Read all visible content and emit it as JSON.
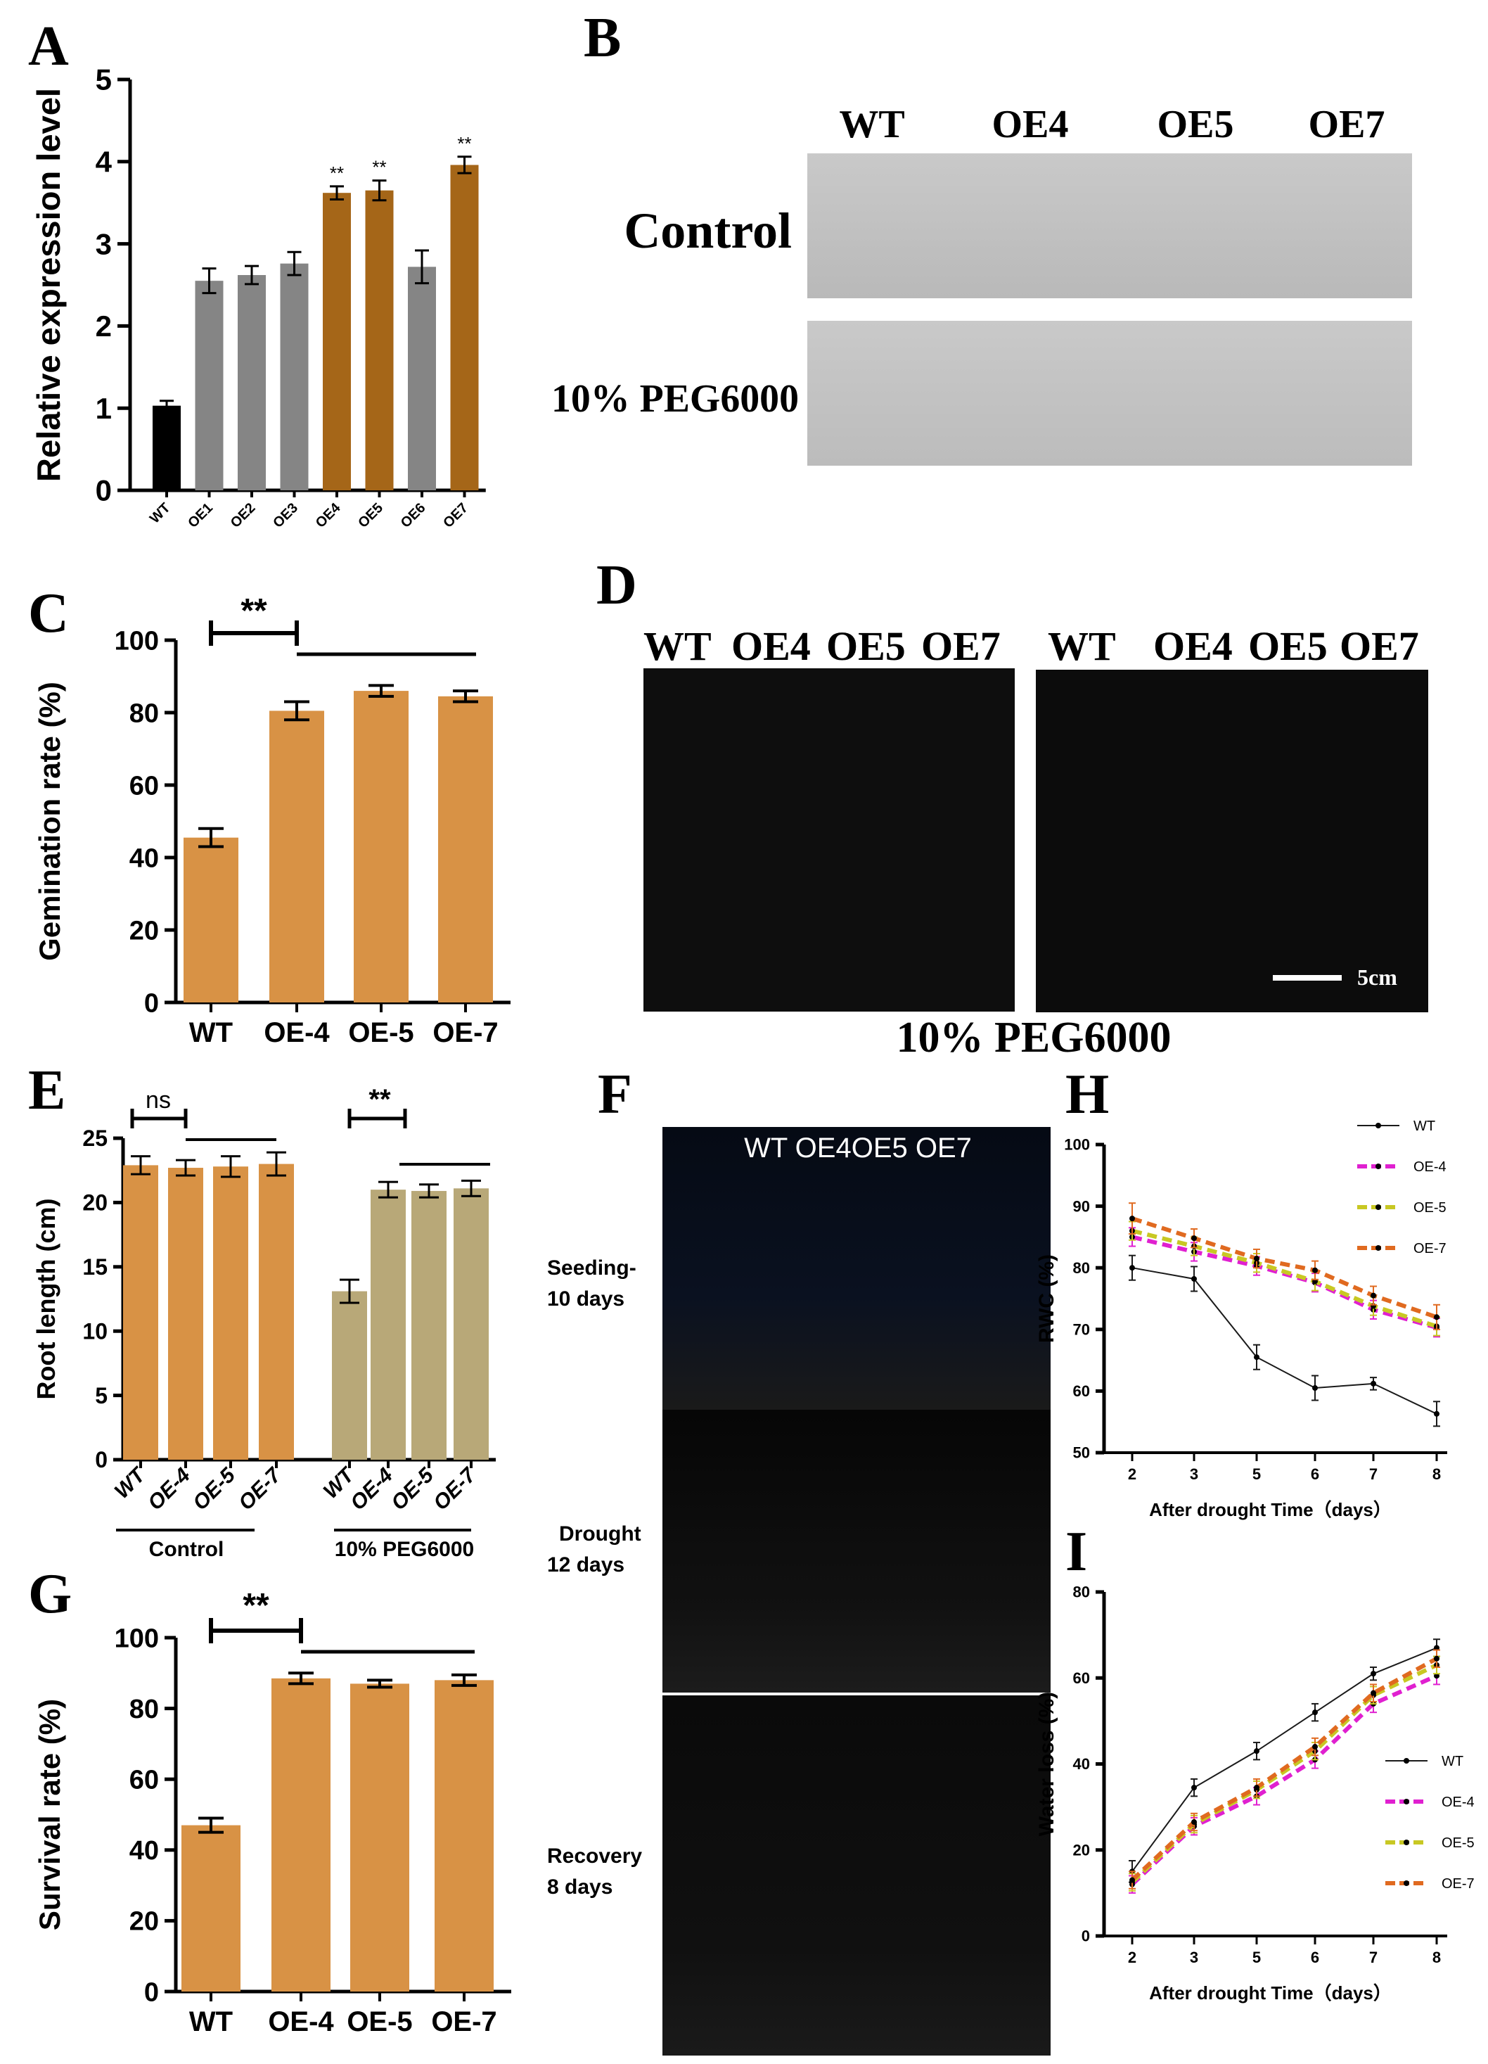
{
  "panels": {
    "A": "A",
    "B": "B",
    "C": "C",
    "D": "D",
    "E": "E",
    "F": "F",
    "G": "G",
    "H": "H",
    "I": "I"
  },
  "colors": {
    "black": "#000000",
    "gray": "#858585",
    "brown": "#a56618",
    "orange": "#d89245",
    "olive": "#b8a878",
    "wt": "#1a1a1a",
    "oe4": "#e020d0",
    "oe5": "#c8c823",
    "oe7": "#e06a20"
  },
  "photoB": {
    "cols": [
      "WT",
      "OE4",
      "OE5",
      "OE7"
    ],
    "rows": [
      "Control",
      "10% PEG6000"
    ]
  },
  "photoD": {
    "left_labels": [
      "WT",
      "OE4",
      "OE5",
      "OE7"
    ],
    "right_labels": [
      "WT",
      "OE4",
      "OE5",
      "OE7"
    ],
    "scale": "5cm",
    "caption": "10% PEG6000"
  },
  "photoF": {
    "header": "WT OE4OE5 OE7",
    "stages": [
      "Seeding-\n10 days",
      "Drought\n12 days",
      "Recovery\n8 days"
    ]
  },
  "chart_data": [
    {
      "id": "A",
      "type": "bar",
      "title": "",
      "categories": [
        "WT",
        "OE1",
        "OE2",
        "OE3",
        "OE4",
        "OE5",
        "OE6",
        "OE7"
      ],
      "values": [
        1.03,
        2.55,
        2.62,
        2.76,
        3.62,
        3.65,
        2.72,
        3.96
      ],
      "errors": [
        0.06,
        0.15,
        0.11,
        0.14,
        0.08,
        0.12,
        0.2,
        0.1
      ],
      "colors": [
        "black",
        "gray",
        "gray",
        "gray",
        "brown",
        "brown",
        "gray",
        "brown"
      ],
      "significance": [
        "",
        "",
        "",
        "",
        "**",
        "**",
        "",
        "**"
      ],
      "ylabel": "Relative expression level",
      "ylim": [
        0,
        5
      ],
      "yticks": [
        "0",
        "1",
        "2",
        "3",
        "4",
        "5"
      ]
    },
    {
      "id": "C",
      "type": "bar",
      "categories": [
        "WT",
        "OE-4",
        "OE-5",
        "OE-7"
      ],
      "values": [
        45.5,
        80.5,
        86,
        84.5
      ],
      "errors": [
        2.5,
        2.5,
        1.5,
        1.5
      ],
      "ylabel": "Gemination rate (%)",
      "ylim": [
        0,
        100
      ],
      "yticks": [
        "0",
        "20",
        "40",
        "60",
        "80",
        "100"
      ],
      "significance": "**"
    },
    {
      "id": "E",
      "type": "bar",
      "groups": [
        "Control",
        "10% PEG6000"
      ],
      "categories": [
        "WT",
        "OE-4",
        "OE-5",
        "OE-7"
      ],
      "series": [
        {
          "name": "Control",
          "values": [
            22.9,
            22.7,
            22.8,
            23.0
          ],
          "errors": [
            0.7,
            0.6,
            0.8,
            0.9
          ]
        },
        {
          "name": "10% PEG6000",
          "values": [
            13.1,
            21.0,
            20.9,
            21.1
          ],
          "errors": [
            0.9,
            0.6,
            0.5,
            0.6
          ]
        }
      ],
      "ylabel": "Root length (cm)",
      "ylim": [
        0,
        25
      ],
      "yticks": [
        "0",
        "5",
        "10",
        "15",
        "20",
        "25"
      ],
      "significance": [
        "ns",
        "**"
      ]
    },
    {
      "id": "G",
      "type": "bar",
      "categories": [
        "WT",
        "OE-4",
        "OE-5",
        "OE-7"
      ],
      "values": [
        47,
        88.5,
        87,
        88
      ],
      "errors": [
        2,
        1.5,
        1,
        1.5
      ],
      "ylabel": "Survival rate (%)",
      "ylim": [
        0,
        100
      ],
      "yticks": [
        "0",
        "20",
        "40",
        "60",
        "80",
        "100"
      ],
      "significance": "**"
    },
    {
      "id": "H",
      "type": "line",
      "x": [
        "2",
        "3",
        "5",
        "6",
        "7",
        "8"
      ],
      "series": [
        {
          "name": "WT",
          "values": [
            80,
            78.2,
            65.5,
            60.5,
            61.2,
            56.3
          ],
          "errors": [
            2,
            2,
            2,
            2,
            1,
            2
          ]
        },
        {
          "name": "OE-4",
          "values": [
            85,
            82.6,
            80.3,
            77.6,
            73.2,
            70.3
          ],
          "errors": [
            1.5,
            1.5,
            1.5,
            1.5,
            1.5,
            1.5
          ]
        },
        {
          "name": "OE-5",
          "values": [
            86,
            83.5,
            80.8,
            77.8,
            73.8,
            70.5
          ],
          "errors": [
            1.5,
            1.5,
            1.5,
            1.5,
            1.5,
            1.5
          ]
        },
        {
          "name": "OE-7",
          "values": [
            88,
            84.8,
            81.5,
            79.6,
            75.5,
            72
          ],
          "errors": [
            2.5,
            1.5,
            1.5,
            1.5,
            1.5,
            2
          ]
        }
      ],
      "xlabel": "After drought Time（days）",
      "ylabel": "RWC (%)",
      "ylim": [
        50,
        100
      ],
      "yticks": [
        "50",
        "60",
        "70",
        "80",
        "90",
        "100"
      ]
    },
    {
      "id": "I",
      "type": "line",
      "x": [
        "2",
        "3",
        "5",
        "6",
        "7",
        "8"
      ],
      "series": [
        {
          "name": "WT",
          "values": [
            15,
            34.5,
            43,
            52,
            61,
            67
          ],
          "errors": [
            2.5,
            2,
            2,
            2,
            1.5,
            2
          ]
        },
        {
          "name": "OE-4",
          "values": [
            12,
            25.5,
            32.5,
            41,
            54,
            60.5
          ],
          "errors": [
            2,
            2,
            2,
            2,
            2,
            2
          ]
        },
        {
          "name": "OE-5",
          "values": [
            12.5,
            26,
            34,
            43,
            56,
            63
          ],
          "errors": [
            2,
            2,
            2,
            2,
            2,
            2
          ]
        },
        {
          "name": "OE-7",
          "values": [
            13,
            26.5,
            34.5,
            44,
            56.5,
            64.5
          ],
          "errors": [
            2,
            2,
            2,
            2,
            2,
            2
          ]
        }
      ],
      "xlabel": "After drought Time（days）",
      "ylabel": "Water loss (%)",
      "ylim": [
        0,
        80
      ],
      "yticks": [
        "0",
        "20",
        "40",
        "60",
        "80"
      ]
    }
  ]
}
